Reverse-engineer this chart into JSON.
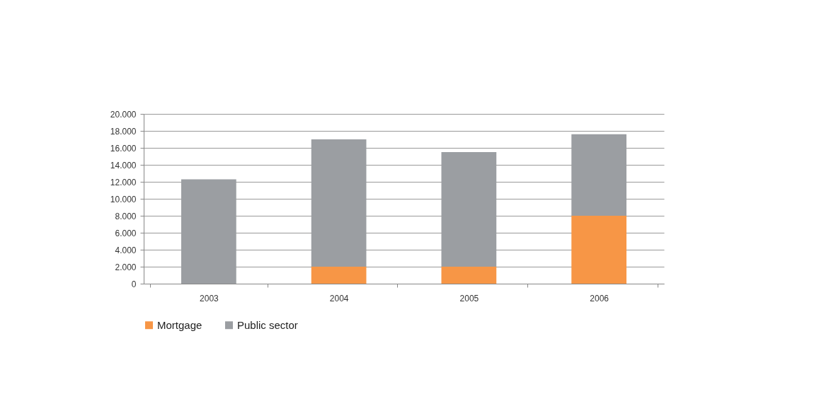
{
  "chart_data": {
    "type": "bar",
    "stacked": true,
    "categories": [
      "2003",
      "2004",
      "2005",
      "2006"
    ],
    "series": [
      {
        "name": "Mortgage",
        "color": "#f79646",
        "values": [
          0,
          2000,
          2000,
          8000
        ]
      },
      {
        "name": "Public sector",
        "color": "#9b9ea2",
        "values": [
          12300,
          15000,
          13500,
          9600
        ]
      }
    ],
    "ylim": [
      0,
      20000
    ],
    "yticks": [
      0,
      {
        "value": 2000,
        "label": "2.000"
      },
      {
        "value": 4000,
        "label": "4.000"
      },
      {
        "value": 6000,
        "label": "6.000"
      },
      {
        "value": 8000,
        "label": "8.000"
      },
      {
        "value": 10000,
        "label": "10.000"
      },
      {
        "value": 12000,
        "label": "12.000"
      },
      {
        "value": 14000,
        "label": "14.000"
      },
      {
        "value": 16000,
        "label": "16.000"
      },
      {
        "value": 18000,
        "label": "18.000"
      },
      {
        "value": 20000,
        "label": "20.000"
      }
    ],
    "grid": "y",
    "legend": "bottom"
  }
}
